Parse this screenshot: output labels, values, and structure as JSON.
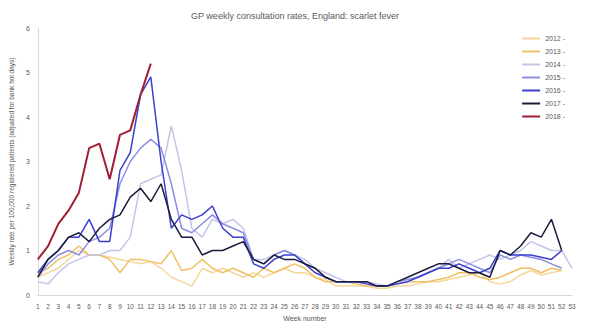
{
  "chart_data": {
    "type": "line",
    "title": "GP weekly consultation rates, England: scarlet fever",
    "x_label": "Week number",
    "y_label": "Weekly rate per 100,000 registered patients (adjusted for bank hol days)",
    "categories": [
      "1",
      "2",
      "3",
      "4",
      "5",
      "6",
      "7",
      "8",
      "9",
      "10",
      "11",
      "12",
      "13",
      "14",
      "15",
      "16",
      "17",
      "18",
      "19",
      "20",
      "21",
      "22",
      "23",
      "24",
      "25",
      "26",
      "27",
      "28",
      "29",
      "30",
      "31",
      "32",
      "33",
      "34",
      "35",
      "36",
      "37",
      "38",
      "39",
      "40",
      "41",
      "42",
      "43",
      "44",
      "45",
      "46",
      "47",
      "48",
      "49",
      "50",
      "51",
      "52",
      "53"
    ],
    "ylim": [
      0,
      6
    ],
    "yticks": [
      0,
      1,
      2,
      3,
      4,
      5,
      6
    ],
    "grid": false,
    "legend": "top-right",
    "series": [
      {
        "name": "2012 -",
        "color": "#f6d79a",
        "values": [
          0.4,
          0.5,
          0.6,
          0.8,
          1.0,
          0.9,
          0.9,
          0.85,
          0.8,
          0.75,
          0.7,
          0.75,
          0.6,
          0.4,
          0.3,
          0.2,
          0.6,
          0.5,
          0.6,
          0.5,
          0.4,
          0.5,
          0.4,
          0.5,
          0.6,
          0.5,
          0.5,
          0.4,
          0.35,
          0.2,
          0.2,
          0.2,
          0.2,
          0.15,
          0.15,
          0.2,
          0.2,
          0.25,
          0.3,
          0.3,
          0.35,
          0.4,
          0.45,
          0.5,
          0.3,
          0.25,
          0.3,
          0.45,
          0.55,
          0.45,
          0.5,
          0.55,
          null
        ]
      },
      {
        "name": "2013 -",
        "color": "#eec066",
        "values": [
          0.5,
          0.6,
          0.8,
          0.9,
          1.1,
          0.9,
          0.9,
          0.8,
          0.5,
          0.8,
          0.8,
          0.75,
          0.7,
          1.0,
          0.55,
          0.6,
          0.8,
          0.6,
          0.5,
          0.6,
          0.5,
          0.4,
          0.6,
          0.5,
          0.6,
          0.7,
          0.6,
          0.4,
          0.3,
          0.3,
          0.3,
          0.25,
          0.2,
          0.2,
          0.2,
          0.25,
          0.3,
          0.3,
          0.3,
          0.35,
          0.4,
          0.5,
          0.5,
          0.4,
          0.35,
          0.4,
          0.5,
          0.6,
          0.6,
          0.5,
          0.6,
          0.55,
          null
        ]
      },
      {
        "name": "2014 -",
        "color": "#c4c4e8",
        "values": [
          0.3,
          0.25,
          0.5,
          0.7,
          0.8,
          0.9,
          0.9,
          1.0,
          1.0,
          1.3,
          2.5,
          2.6,
          2.7,
          3.8,
          2.8,
          1.5,
          1.3,
          1.7,
          1.6,
          1.7,
          1.5,
          0.8,
          0.8,
          0.9,
          1.0,
          0.9,
          0.8,
          0.6,
          0.5,
          0.4,
          0.3,
          0.3,
          0.3,
          0.25,
          0.2,
          0.25,
          0.3,
          0.4,
          0.5,
          0.6,
          0.8,
          0.6,
          0.7,
          0.8,
          0.9,
          0.8,
          0.9,
          1.0,
          1.2,
          1.1,
          1.0,
          1.0,
          0.6
        ]
      },
      {
        "name": "2015 -",
        "color": "#8c8ee0",
        "values": [
          0.4,
          0.7,
          0.9,
          1.0,
          0.9,
          1.2,
          1.3,
          1.5,
          2.5,
          3.0,
          3.3,
          3.5,
          3.3,
          2.5,
          1.5,
          1.4,
          1.6,
          1.8,
          1.6,
          1.5,
          1.4,
          0.8,
          0.7,
          0.9,
          1.0,
          0.9,
          0.7,
          0.6,
          0.4,
          0.3,
          0.3,
          0.3,
          0.3,
          0.2,
          0.2,
          0.3,
          0.35,
          0.4,
          0.5,
          0.6,
          0.7,
          0.8,
          0.7,
          0.6,
          0.5,
          0.9,
          0.8,
          0.9,
          0.85,
          0.8,
          0.7,
          0.6,
          null
        ]
      },
      {
        "name": "2016 -",
        "color": "#3a3fcf",
        "values": [
          0.5,
          0.8,
          1.0,
          1.3,
          1.3,
          1.7,
          1.2,
          1.2,
          2.8,
          3.2,
          4.5,
          4.9,
          3.0,
          1.5,
          1.8,
          1.7,
          1.8,
          2.0,
          1.5,
          1.3,
          1.3,
          0.7,
          0.6,
          0.8,
          0.9,
          0.9,
          0.7,
          0.5,
          0.4,
          0.3,
          0.3,
          0.3,
          0.25,
          0.2,
          0.2,
          0.25,
          0.3,
          0.4,
          0.5,
          0.6,
          0.6,
          0.7,
          0.6,
          0.5,
          0.6,
          1.0,
          0.9,
          0.9,
          0.9,
          0.85,
          0.8,
          1.0,
          null
        ]
      },
      {
        "name": "2017 -",
        "color": "#1b1b3c",
        "values": [
          0.4,
          0.8,
          1.0,
          1.3,
          1.4,
          1.2,
          1.5,
          1.7,
          1.8,
          2.2,
          2.4,
          2.1,
          2.5,
          1.7,
          1.3,
          1.3,
          0.9,
          1.0,
          1.0,
          1.1,
          1.2,
          0.8,
          0.7,
          0.9,
          0.8,
          0.8,
          0.7,
          0.6,
          0.4,
          0.3,
          0.3,
          0.3,
          0.3,
          0.2,
          0.2,
          0.3,
          0.4,
          0.5,
          0.6,
          0.7,
          0.7,
          0.6,
          0.5,
          0.5,
          0.4,
          1.0,
          0.9,
          1.1,
          1.4,
          1.3,
          1.7,
          1.0,
          null
        ]
      },
      {
        "name": "2018 -",
        "color": "#a11c34",
        "values": [
          0.8,
          1.1,
          1.6,
          1.9,
          2.3,
          3.3,
          3.4,
          2.6,
          3.6,
          3.7,
          4.5,
          5.2,
          null,
          null,
          null,
          null,
          null,
          null,
          null,
          null,
          null,
          null,
          null,
          null,
          null,
          null,
          null,
          null,
          null,
          null,
          null,
          null,
          null,
          null,
          null,
          null,
          null,
          null,
          null,
          null,
          null,
          null,
          null,
          null,
          null,
          null,
          null,
          null,
          null,
          null,
          null,
          null,
          null
        ]
      }
    ]
  }
}
